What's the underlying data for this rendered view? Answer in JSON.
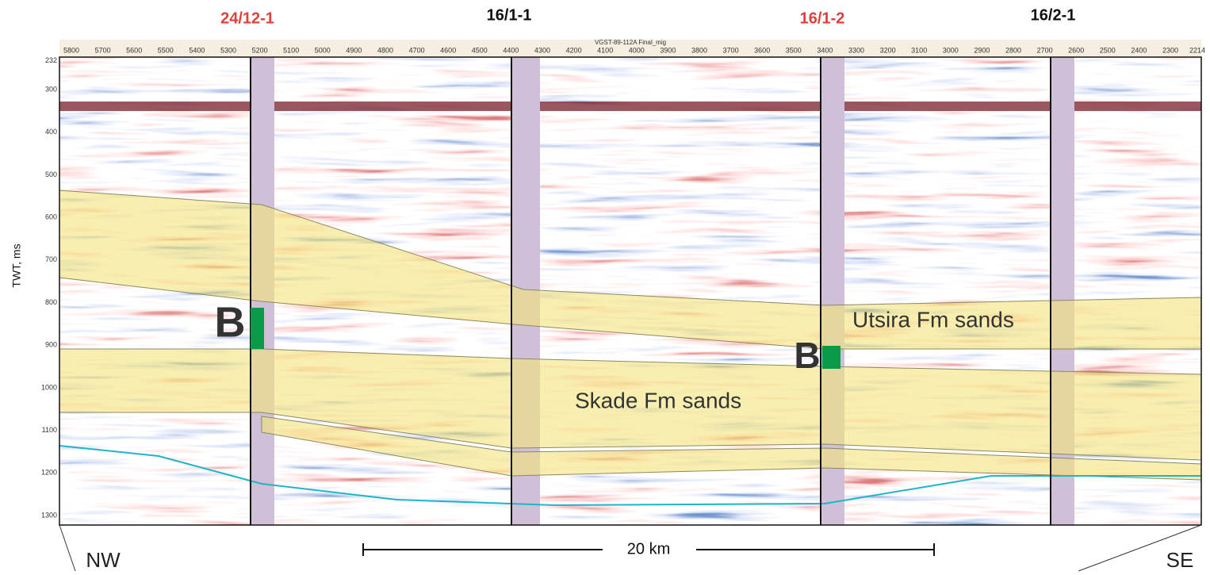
{
  "wells": [
    "24/12-1",
    "16/1-1",
    "16/1-2",
    "16/2-1"
  ],
  "line_name": "VGST-89-112A Final_mig",
  "trace_labels": [
    5800,
    5700,
    5600,
    5500,
    5400,
    5300,
    5200,
    5100,
    5000,
    4900,
    4800,
    4700,
    4600,
    4500,
    4400,
    4300,
    4200,
    4100,
    4000,
    3900,
    3800,
    3700,
    3600,
    3500,
    3400,
    3300,
    3200,
    3100,
    3000,
    2900,
    2800,
    2700,
    2600,
    2500,
    2400,
    2300,
    2214
  ],
  "time_axis": {
    "label": "TWT, ms",
    "ticks": [
      232,
      300,
      400,
      500,
      600,
      700,
      800,
      900,
      1000,
      1100,
      1200,
      1300
    ]
  },
  "annotations": {
    "markers": [
      "B",
      "B"
    ],
    "units": [
      "Utsira Fm sands",
      "Skade Fm sands"
    ]
  },
  "orientation": {
    "start": "NW",
    "end": "SE"
  },
  "scale_bar": "20 km"
}
